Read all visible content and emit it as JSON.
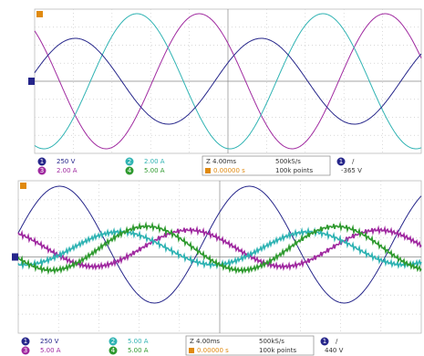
{
  "panels": [
    {
      "channels": [
        {
          "number": "1",
          "scale": "250 V"
        },
        {
          "number": "2",
          "scale": "2.00 A"
        },
        {
          "number": "3",
          "scale": "2.00 A"
        },
        {
          "number": "4",
          "scale": "5.00 A"
        }
      ],
      "timebase": "Z 4.00ms",
      "sample_rate": "500kS/s",
      "trigger_time": "0.00000 s",
      "points": "100k points",
      "trigger_channel": "1",
      "trigger_slope": "/",
      "trigger_level": "-365 V"
    },
    {
      "channels": [
        {
          "number": "1",
          "scale": "250 V"
        },
        {
          "number": "2",
          "scale": "5.00 A"
        },
        {
          "number": "3",
          "scale": "5.00 A"
        },
        {
          "number": "4",
          "scale": "5.00 A"
        }
      ],
      "timebase": "Z 4.00ms",
      "sample_rate": "500kS/s",
      "trigger_time": "0.00000 s",
      "points": "100k points",
      "trigger_channel": "1",
      "trigger_slope": "/",
      "trigger_level": "440 V"
    }
  ]
}
